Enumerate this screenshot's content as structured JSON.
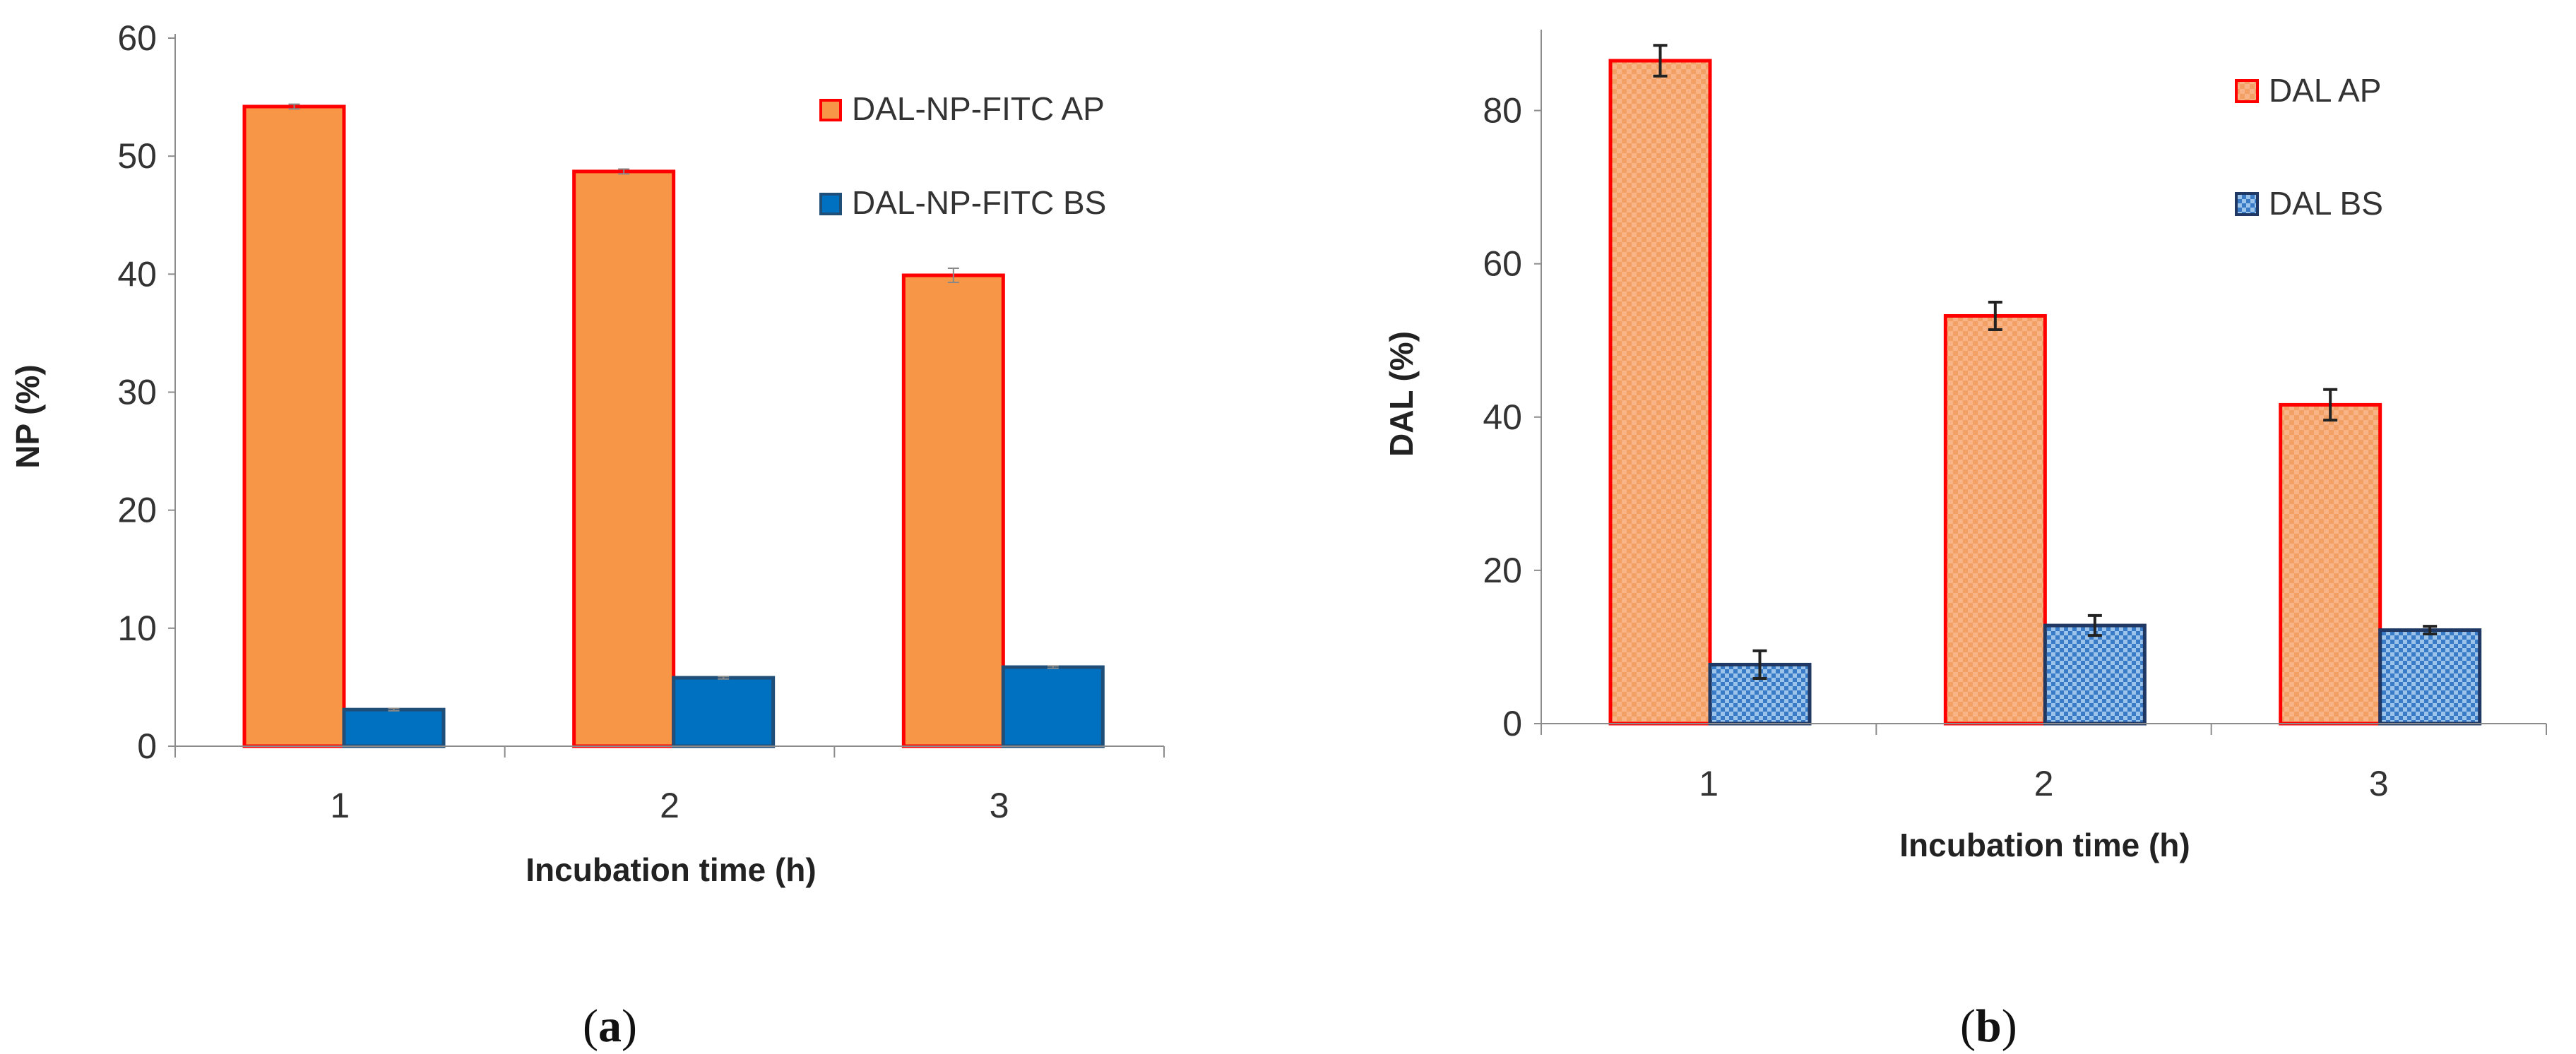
{
  "chart_data": [
    {
      "type": "bar",
      "panel": "(a)",
      "panel_parts": {
        "open": "(",
        "letter": "a",
        "close": ")"
      },
      "xlabel": "Incubation time (h)",
      "ylabel": "NP  (%)",
      "categories": [
        "1",
        "2",
        "3"
      ],
      "ylim": [
        0,
        60
      ],
      "yticks": [
        0,
        10,
        20,
        30,
        40,
        50,
        60
      ],
      "legend_position": "top-right",
      "series": [
        {
          "name": "DAL-NP-FITC AP",
          "values": [
            54.2,
            48.7,
            39.9
          ],
          "errors": [
            0.2,
            0.2,
            0.6
          ],
          "fill": "#F79646",
          "stroke": "#FF0000",
          "pattern": "solid"
        },
        {
          "name": "DAL-NP-FITC BS",
          "values": [
            3.1,
            5.8,
            6.7
          ],
          "errors": [
            0.1,
            0.1,
            0.1
          ],
          "fill": "#0070C0",
          "stroke": "#1F4E79",
          "pattern": "solid"
        }
      ]
    },
    {
      "type": "bar",
      "panel": "(b)",
      "panel_parts": {
        "open": "(",
        "letter": "b",
        "close": ")"
      },
      "xlabel": "Incubation time (h)",
      "ylabel": "DAL (%)",
      "categories": [
        "1",
        "2",
        "3"
      ],
      "ylim": [
        0,
        90
      ],
      "yticks": [
        0,
        20,
        40,
        60,
        80
      ],
      "legend_position": "top-right",
      "series": [
        {
          "name": "DAL AP",
          "values": [
            86.5,
            53.2,
            41.6
          ],
          "errors": [
            2.0,
            1.8,
            2.0
          ],
          "fill": "#F79646",
          "stroke": "#FF0000",
          "pattern": "checker"
        },
        {
          "name": "DAL BS",
          "values": [
            7.7,
            12.8,
            12.2
          ],
          "errors": [
            1.8,
            1.3,
            0.5
          ],
          "fill": "#2E75B6",
          "stroke": "#1F3864",
          "pattern": "checker"
        }
      ]
    }
  ]
}
